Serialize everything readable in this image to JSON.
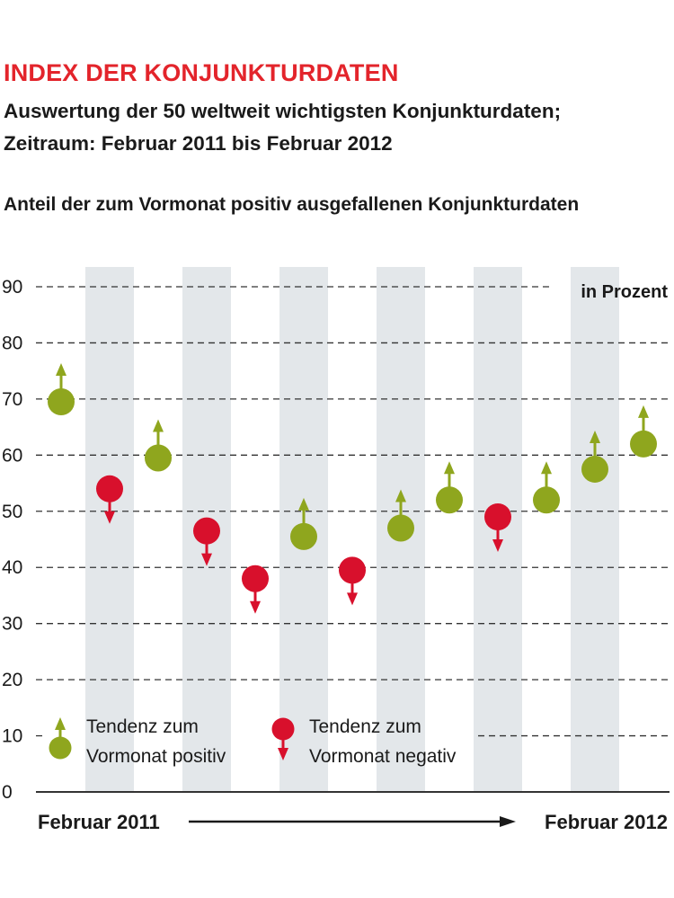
{
  "title": "INDEX DER KONJUNKTURDATEN",
  "subtitle_line1": "Auswertung der 50 weltweit wichtigsten Konjunkturdaten;",
  "subtitle_line2": "Zeitraum: Februar 2011 bis Februar 2012",
  "caption": "Anteil der zum Vormonat positiv ausgefallenen Konjunkturdaten",
  "colors": {
    "title": "#e3242b",
    "positive": "#8fa61e",
    "negative": "#d8102c",
    "band": "#e3e7ea",
    "grid": "#333333"
  },
  "chart_data": {
    "type": "scatter",
    "unit_label": "in Prozent",
    "ylim": [
      0,
      90
    ],
    "yticks": [
      "0",
      "10",
      "20",
      "30",
      "40",
      "50",
      "60",
      "70",
      "80",
      "90"
    ],
    "x_start_label": "Februar 2011",
    "x_end_label": "Februar 2012",
    "grid": "dashed horizontal",
    "legend_placement": "bottom-left",
    "values": [
      69.5,
      54,
      59.5,
      46.5,
      38,
      45.5,
      39.5,
      47,
      52,
      49,
      52,
      57.5,
      62
    ],
    "tendency": [
      "positive",
      "negative",
      "positive",
      "negative",
      "negative",
      "positive",
      "negative",
      "positive",
      "positive",
      "negative",
      "positive",
      "positive",
      "positive"
    ],
    "legend": {
      "positive_line1": "Tendenz zum",
      "positive_line2": "Vormonat positiv",
      "negative_line1": "Tendenz zum",
      "negative_line2": "Vormonat negativ"
    }
  }
}
